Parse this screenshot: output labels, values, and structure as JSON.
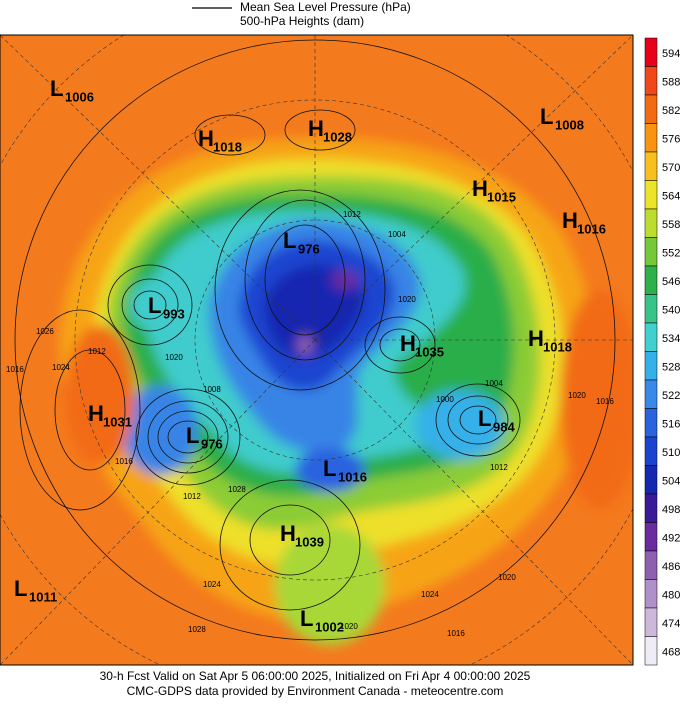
{
  "header": {
    "legend_line": "Mean Sea Level Pressure (hPa)",
    "legend_shade": "500-hPa Heights (dam)"
  },
  "colorbar": [
    {
      "label": 594,
      "color": "#e8001a"
    },
    {
      "label": 588,
      "color": "#f04818"
    },
    {
      "label": 582,
      "color": "#f26a12"
    },
    {
      "label": 576,
      "color": "#f89412"
    },
    {
      "label": 570,
      "color": "#f8c01c"
    },
    {
      "label": 564,
      "color": "#ece428"
    },
    {
      "label": 558,
      "color": "#bcdc30"
    },
    {
      "label": 552,
      "color": "#74c83a"
    },
    {
      "label": 546,
      "color": "#2eb04a"
    },
    {
      "label": 540,
      "color": "#38c488"
    },
    {
      "label": 534,
      "color": "#40d0d0"
    },
    {
      "label": 528,
      "color": "#36b0e8"
    },
    {
      "label": 522,
      "color": "#3a88e8"
    },
    {
      "label": 516,
      "color": "#2a62e0"
    },
    {
      "label": 510,
      "color": "#1a44d0"
    },
    {
      "label": 504,
      "color": "#1428b0"
    },
    {
      "label": 498,
      "color": "#3a1a98"
    },
    {
      "label": 492,
      "color": "#6a2aa0"
    },
    {
      "label": 486,
      "color": "#9060b0"
    },
    {
      "label": 480,
      "color": "#b090c8"
    },
    {
      "label": 474,
      "color": "#cdb8dc"
    },
    {
      "label": 468,
      "color": "#f0ecf6"
    }
  ],
  "systems": [
    {
      "type": "L",
      "value": "1006"
    },
    {
      "type": "H",
      "value": "1018"
    },
    {
      "type": "H",
      "value": "1028"
    },
    {
      "type": "L",
      "value": "1008"
    },
    {
      "type": "H",
      "value": "1015"
    },
    {
      "type": "H",
      "value": "1016"
    },
    {
      "type": "L",
      "value": "976"
    },
    {
      "type": "L",
      "value": "993"
    },
    {
      "type": "H",
      "value": "1035"
    },
    {
      "type": "H",
      "value": "1018"
    },
    {
      "type": "H",
      "value": "1031"
    },
    {
      "type": "L",
      "value": "976"
    },
    {
      "type": "L",
      "value": "984"
    },
    {
      "type": "L",
      "value": "1016"
    },
    {
      "type": "H",
      "value": "1039"
    },
    {
      "type": "L",
      "value": "1011"
    },
    {
      "type": "L",
      "value": "1002"
    }
  ],
  "contour_labels": [
    "1012",
    "1004",
    "1020",
    "1026",
    "1024",
    "1016",
    "1012",
    "1020",
    "1008",
    "1016",
    "1012",
    "1028",
    "1004",
    "1000",
    "1012",
    "1020",
    "1016",
    "1024",
    "1020",
    "1024",
    "1016",
    "1028",
    "1020"
  ],
  "footer": {
    "line1": "30-h Fcst Valid on Sat Apr  5 06:00:00 2025, Initialized on Fri Apr  4 00:00:00 2025",
    "line2": "CMC-GDPS data provided by Environment Canada - meteocentre.com"
  }
}
